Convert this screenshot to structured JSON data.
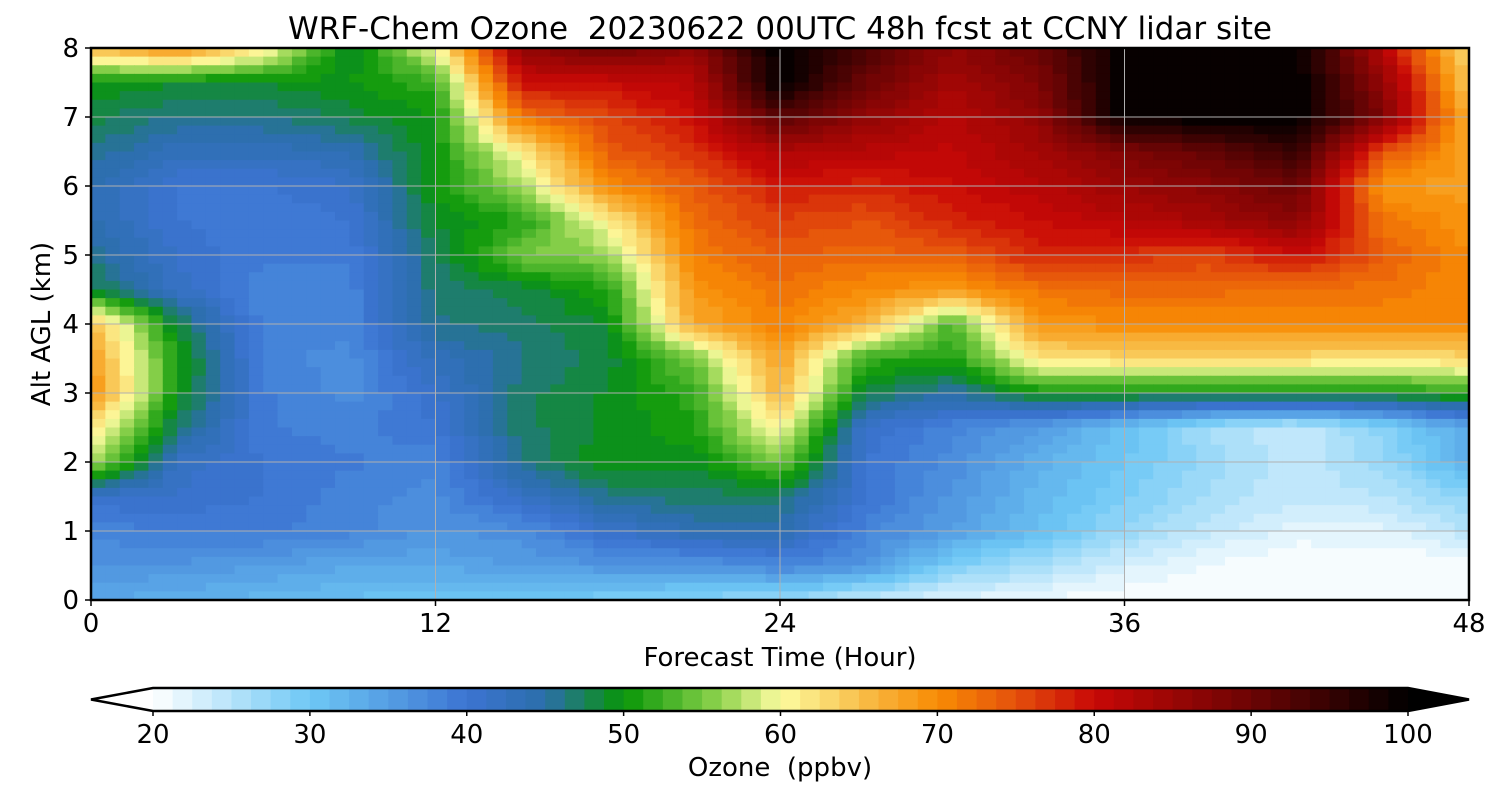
{
  "chart_data": {
    "type": "heatmap",
    "title": "WRF-Chem Ozone  20230622 00UTC 48h fcst at CCNY lidar site",
    "xlabel": "Forecast Time (Hour)",
    "ylabel": "Alt AGL (km)",
    "xlim": [
      0,
      48
    ],
    "ylim": [
      0,
      8
    ],
    "x_ticks": [
      "0",
      "12",
      "24",
      "36",
      "48"
    ],
    "y_ticks": [
      "0",
      "1",
      "2",
      "3",
      "4",
      "5",
      "6",
      "7",
      "8"
    ],
    "grid": true,
    "x": [
      0,
      3,
      6,
      9,
      12,
      15,
      18,
      21,
      24,
      27,
      30,
      33,
      36,
      39,
      42,
      45,
      48
    ],
    "y": [
      0,
      0.5,
      1,
      1.5,
      2,
      2.5,
      3,
      3.5,
      4,
      4.5,
      5,
      5.5,
      6,
      6.5,
      7,
      7.5,
      8
    ],
    "z": [
      [
        34,
        33,
        32,
        31,
        30,
        30,
        29,
        28,
        27,
        24,
        22,
        21,
        20,
        20,
        20,
        20,
        20
      ],
      [
        36,
        36,
        35,
        34,
        34,
        35,
        36,
        36,
        38,
        36,
        29,
        26,
        23,
        21,
        20,
        20,
        20
      ],
      [
        38,
        39,
        39,
        38,
        36,
        37,
        41,
        44,
        44,
        38,
        35,
        31,
        27,
        24,
        22,
        22,
        25
      ],
      [
        41,
        41,
        40,
        38,
        37,
        42,
        46,
        47,
        47,
        40,
        36,
        32,
        29,
        26,
        24,
        25,
        28
      ],
      [
        58,
        42,
        40,
        39,
        38,
        46,
        50,
        49,
        55,
        40,
        37,
        33,
        30,
        27,
        24,
        27,
        33
      ],
      [
        62,
        47,
        39,
        38,
        40,
        47,
        49,
        51,
        61,
        41,
        38,
        35,
        31,
        26,
        24,
        28,
        34
      ],
      [
        70,
        50,
        39,
        37,
        41,
        47,
        49,
        52,
        66,
        48,
        45,
        50,
        50,
        50,
        50,
        50,
        52
      ],
      [
        68,
        51,
        38,
        37,
        43,
        46,
        48,
        55,
        68,
        52,
        51,
        62,
        63,
        63,
        63,
        62,
        63
      ],
      [
        66,
        48,
        38,
        38,
        46,
        47,
        49,
        67,
        71,
        66,
        53,
        69,
        70,
        70,
        70,
        70,
        70
      ],
      [
        48,
        42,
        38,
        38,
        47,
        48,
        51,
        69,
        72,
        70,
        69,
        72,
        73,
        73,
        72,
        72,
        70
      ],
      [
        46,
        41,
        39,
        39,
        47,
        55,
        56,
        71,
        74,
        73,
        74,
        78,
        77,
        76,
        80,
        74,
        70
      ],
      [
        44,
        40,
        39,
        40,
        49,
        51,
        61,
        73,
        76,
        75,
        78,
        80,
        82,
        84,
        87,
        72,
        69
      ],
      [
        44,
        40,
        40,
        41,
        50,
        57,
        70,
        74,
        79,
        78,
        80,
        82,
        85,
        87,
        90,
        69,
        68
      ],
      [
        46,
        43,
        43,
        44,
        50,
        61,
        74,
        77,
        83,
        82,
        81,
        84,
        88,
        91,
        95,
        75,
        68
      ],
      [
        48,
        46,
        46,
        48,
        50,
        72,
        76,
        80,
        92,
        86,
        82,
        86,
        100,
        100,
        100,
        88,
        66
      ],
      [
        50,
        49,
        49,
        50,
        52,
        80,
        80,
        82,
        100,
        90,
        84,
        88,
        100,
        100,
        100,
        86,
        64
      ],
      [
        66,
        70,
        62,
        48,
        60,
        86,
        90,
        86,
        100,
        93,
        86,
        90,
        100,
        100,
        100,
        82,
        62
      ]
    ],
    "colorbar": {
      "label": "Ozone  (ppbv)",
      "min": 20,
      "max": 100,
      "step": 1.25,
      "ticks": [
        "20",
        "30",
        "40",
        "50",
        "60",
        "70",
        "80",
        "90",
        "100"
      ],
      "extend": "both",
      "anchors": [
        {
          "v": 20,
          "c": "#ffffff"
        },
        {
          "v": 30,
          "c": "#6ec8f5"
        },
        {
          "v": 40,
          "c": "#3c74d2"
        },
        {
          "v": 45,
          "c": "#2b6eaa"
        },
        {
          "v": 50,
          "c": "#079607"
        },
        {
          "v": 56,
          "c": "#8cd24c"
        },
        {
          "v": 60,
          "c": "#fcfca0"
        },
        {
          "v": 66,
          "c": "#f8b43c"
        },
        {
          "v": 70,
          "c": "#f88c04"
        },
        {
          "v": 75,
          "c": "#e4500c"
        },
        {
          "v": 80,
          "c": "#c80806"
        },
        {
          "v": 90,
          "c": "#6c0404"
        },
        {
          "v": 100,
          "c": "#000000"
        }
      ]
    }
  }
}
